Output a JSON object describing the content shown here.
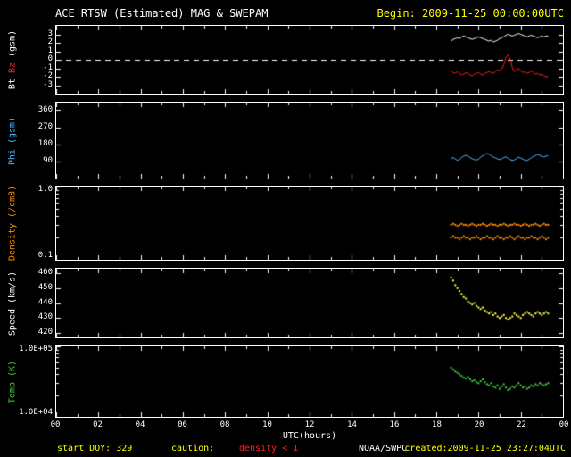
{
  "header": {
    "title": "ACE RTSW (Estimated) MAG & SWEPAM",
    "begin_label": "Begin: 2009-11-25 00:00:00UTC"
  },
  "footer": {
    "start_doy": "start DOY: 329",
    "caution_label": "caution:",
    "caution_value": "density < 1",
    "agency": "NOAA/SWPC",
    "created": "created:2009-11-25 23:27:04UTC"
  },
  "colors": {
    "background": "#000000",
    "frame": "#ffffff",
    "annotation_yellow": "#ffff00",
    "caution_red": "#ff2020",
    "bt_white": "#ffffff",
    "bz_red": "#ff2020",
    "phi_cyan": "#4db8ff",
    "density_orange": "#ff8c00",
    "speed_yellow": "#ffff44",
    "temp_green": "#44cc44"
  },
  "xaxis": {
    "label": "UTC(hours)",
    "range": [
      0,
      24
    ],
    "ticks": [
      {
        "v": 0,
        "label": "00"
      },
      {
        "v": 2,
        "label": "02"
      },
      {
        "v": 4,
        "label": "04"
      },
      {
        "v": 6,
        "label": "06"
      },
      {
        "v": 8,
        "label": "08"
      },
      {
        "v": 10,
        "label": "10"
      },
      {
        "v": 12,
        "label": "12"
      },
      {
        "v": 14,
        "label": "14"
      },
      {
        "v": 16,
        "label": "16"
      },
      {
        "v": 18,
        "label": "18"
      },
      {
        "v": 20,
        "label": "20"
      },
      {
        "v": 22,
        "label": "22"
      },
      {
        "v": 24,
        "label": "00"
      }
    ]
  },
  "x_hours": [
    18.7,
    18.8,
    18.9,
    19.0,
    19.1,
    19.2,
    19.3,
    19.4,
    19.5,
    19.6,
    19.7,
    19.8,
    19.9,
    20.0,
    20.1,
    20.2,
    20.3,
    20.4,
    20.5,
    20.6,
    20.7,
    20.8,
    20.9,
    21.0,
    21.1,
    21.2,
    21.3,
    21.4,
    21.5,
    21.6,
    21.7,
    21.8,
    21.9,
    22.0,
    22.1,
    22.2,
    22.3,
    22.4,
    22.5,
    22.6,
    22.7,
    22.8,
    22.9,
    23.0,
    23.1,
    23.2,
    23.3
  ],
  "chart_data": [
    {
      "name": "mag-bt-bz",
      "type": "line",
      "yscale": "linear",
      "ylim": [
        -4,
        4
      ],
      "zero_line": true,
      "ylabel_parts": [
        {
          "text": "Bt ",
          "color": "#ffffff"
        },
        {
          "text": "Bz ",
          "color": "#ff2020"
        },
        {
          "text": "(gsm)",
          "color": "#ffffff"
        }
      ],
      "yticks": [
        {
          "v": 3,
          "label": "3"
        },
        {
          "v": 2,
          "label": "2"
        },
        {
          "v": 1,
          "label": "1"
        },
        {
          "v": 0,
          "label": "0"
        },
        {
          "v": -1,
          "label": "-1"
        },
        {
          "v": -2,
          "label": "-2"
        },
        {
          "v": -3,
          "label": "-3"
        }
      ],
      "series": [
        {
          "name": "Bt",
          "color": "#ffffff",
          "style": "line",
          "y": [
            2.2,
            2.4,
            2.5,
            2.6,
            2.5,
            2.7,
            2.8,
            2.7,
            2.6,
            2.5,
            2.4,
            2.5,
            2.6,
            2.7,
            2.6,
            2.5,
            2.4,
            2.3,
            2.2,
            2.3,
            2.1,
            2.2,
            2.3,
            2.5,
            2.6,
            2.7,
            2.9,
            3.0,
            2.9,
            2.8,
            2.9,
            3.0,
            3.1,
            3.0,
            2.9,
            2.8,
            2.7,
            2.8,
            2.9,
            2.8,
            2.7,
            2.6,
            2.7,
            2.8,
            2.7,
            2.8,
            2.8
          ]
        },
        {
          "name": "Bz",
          "color": "#ff2020",
          "style": "line",
          "y": [
            -1.3,
            -1.5,
            -1.6,
            -1.4,
            -1.6,
            -1.8,
            -1.7,
            -1.5,
            -1.6,
            -1.8,
            -1.9,
            -1.7,
            -1.6,
            -1.5,
            -1.7,
            -1.8,
            -1.6,
            -1.5,
            -1.4,
            -1.5,
            -1.6,
            -1.4,
            -1.2,
            -1.3,
            -1.1,
            -0.6,
            0.3,
            0.6,
            0.1,
            -0.9,
            -1.4,
            -1.2,
            -1.0,
            -1.3,
            -1.5,
            -1.4,
            -1.6,
            -1.5,
            -1.3,
            -1.5,
            -1.7,
            -1.6,
            -1.8,
            -1.7,
            -1.9,
            -2.0,
            -2.0
          ]
        }
      ]
    },
    {
      "name": "mag-phi",
      "type": "line",
      "yscale": "linear",
      "ylim": [
        0,
        400
      ],
      "zero_line": false,
      "ylabel_parts": [
        {
          "text": "Phi (gsm)",
          "color": "#4db8ff"
        }
      ],
      "yticks": [
        {
          "v": 360,
          "label": "360"
        },
        {
          "v": 270,
          "label": "270"
        },
        {
          "v": 180,
          "label": "180"
        },
        {
          "v": 90,
          "label": "90"
        }
      ],
      "series": [
        {
          "name": "Phi",
          "color": "#4db8ff",
          "style": "line",
          "y": [
            105,
            110,
            102,
            96,
            100,
            112,
            118,
            122,
            118,
            110,
            104,
            100,
            97,
            102,
            112,
            120,
            127,
            132,
            128,
            120,
            114,
            108,
            103,
            100,
            104,
            110,
            114,
            106,
            100,
            95,
            98,
            106,
            112,
            108,
            102,
            97,
            95,
            101,
            109,
            116,
            121,
            126,
            122,
            117,
            114,
            118,
            121
          ]
        }
      ]
    },
    {
      "name": "swepam-density",
      "type": "scatter",
      "yscale": "log",
      "ylim": [
        0.1,
        1.0
      ],
      "zero_line": false,
      "ylabel_parts": [
        {
          "text": "Density (/cm3)",
          "color": "#ff8c00"
        }
      ],
      "yticks": [
        {
          "v": 1.0,
          "label": "1.0"
        },
        {
          "v": 0.1,
          "label": "0.1"
        }
      ],
      "series": [
        {
          "name": "density-upper-band",
          "color": "#ff8c00",
          "style": "dots",
          "y": [
            0.3,
            0.31,
            0.3,
            0.29,
            0.3,
            0.31,
            0.3,
            0.3,
            0.29,
            0.3,
            0.31,
            0.3,
            0.29,
            0.3,
            0.3,
            0.31,
            0.3,
            0.29,
            0.3,
            0.31,
            0.3,
            0.3,
            0.29,
            0.3,
            0.3,
            0.31,
            0.3,
            0.29,
            0.3,
            0.3,
            0.31,
            0.3,
            0.3,
            0.29,
            0.3,
            0.31,
            0.3,
            0.29,
            0.3,
            0.3,
            0.31,
            0.3,
            0.29,
            0.3,
            0.31,
            0.3,
            0.3
          ]
        },
        {
          "name": "density-lower-band",
          "color": "#ff8c00",
          "style": "dots",
          "y": [
            0.2,
            0.21,
            0.2,
            0.2,
            0.19,
            0.2,
            0.21,
            0.2,
            0.2,
            0.19,
            0.2,
            0.2,
            0.21,
            0.2,
            0.19,
            0.2,
            0.2,
            0.21,
            0.2,
            0.2,
            0.19,
            0.2,
            0.21,
            0.2,
            0.2,
            0.19,
            0.2,
            0.2,
            0.21,
            0.2,
            0.19,
            0.2,
            0.21,
            0.2,
            0.2,
            0.19,
            0.2,
            0.2,
            0.21,
            0.2,
            0.2,
            0.19,
            0.2,
            0.21,
            0.2,
            0.19,
            0.2
          ]
        }
      ]
    },
    {
      "name": "swepam-speed",
      "type": "scatter",
      "yscale": "linear",
      "ylim": [
        417,
        463
      ],
      "zero_line": false,
      "ylabel_parts": [
        {
          "text": "Speed (km/s)",
          "color": "#ffffff"
        }
      ],
      "yticks": [
        {
          "v": 460,
          "label": "460"
        },
        {
          "v": 450,
          "label": "450"
        },
        {
          "v": 440,
          "label": "440"
        },
        {
          "v": 430,
          "label": "430"
        },
        {
          "v": 420,
          "label": "420"
        }
      ],
      "series": [
        {
          "name": "Speed",
          "color": "#ffff44",
          "style": "dots",
          "y": [
            457,
            455,
            452,
            450,
            448,
            446,
            444,
            443,
            441,
            440,
            439,
            440,
            438,
            437,
            436,
            437,
            435,
            434,
            433,
            434,
            432,
            433,
            431,
            430,
            431,
            432,
            430,
            429,
            430,
            431,
            433,
            432,
            431,
            430,
            432,
            433,
            434,
            433,
            432,
            431,
            433,
            434,
            433,
            432,
            433,
            434,
            433
          ]
        }
      ]
    },
    {
      "name": "swepam-temp",
      "type": "scatter",
      "yscale": "log",
      "ylim": [
        10000,
        100000
      ],
      "zero_line": false,
      "ylabel_parts": [
        {
          "text": "Temp (K)",
          "color": "#44cc44"
        }
      ],
      "yticks": [
        {
          "v": 100000,
          "label": "1.0E+05"
        },
        {
          "v": 10000,
          "label": "1.0E+04"
        }
      ],
      "series": [
        {
          "name": "Temp",
          "color": "#44cc44",
          "style": "dots",
          "y": [
            50000,
            47000,
            44000,
            42000,
            40000,
            38000,
            36000,
            35000,
            37000,
            34000,
            32000,
            33000,
            31000,
            30000,
            32000,
            34000,
            31000,
            29000,
            28000,
            30000,
            27000,
            26000,
            28000,
            25000,
            27000,
            29000,
            26000,
            24000,
            25000,
            27000,
            26000,
            28000,
            30000,
            28000,
            26000,
            27000,
            25000,
            26000,
            28000,
            27000,
            29000,
            28000,
            30000,
            29000,
            28000,
            29000,
            30000
          ]
        }
      ]
    }
  ]
}
